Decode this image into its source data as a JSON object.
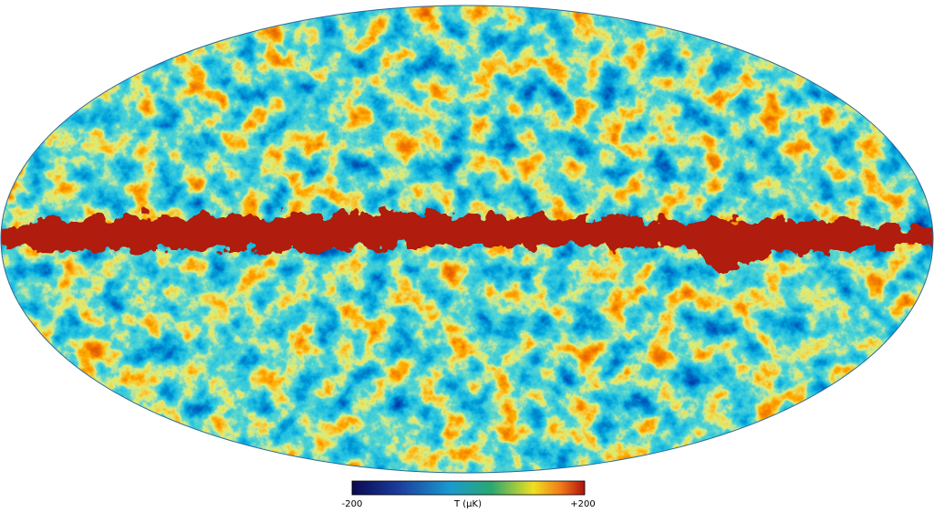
{
  "colorbar": {
    "label": "T (µK)",
    "ticks": [
      -200,
      {
        "value": 200,
        "label": "+200"
      }
    ]
  }
}
